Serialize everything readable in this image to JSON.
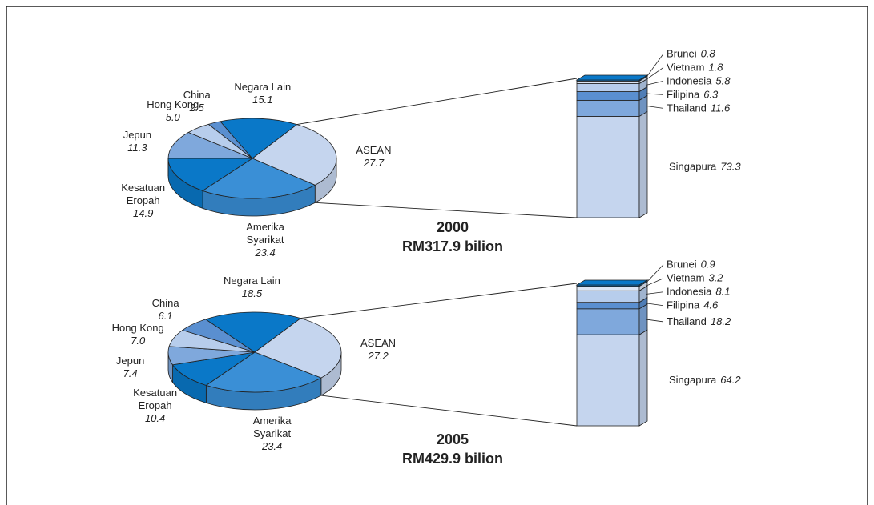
{
  "chart_data": [
    {
      "type": "pie",
      "title": "2000",
      "subtitle": "RM317.9 bilion",
      "categories": [
        "ASEAN",
        "Amerika Syarikat",
        "Kesatuan Eropah",
        "Jepun",
        "Hong Kong",
        "China",
        "Negara Lain"
      ],
      "values": [
        27.7,
        23.4,
        14.9,
        11.3,
        5.0,
        2.5,
        15.1
      ],
      "value_labels": [
        "27.7",
        "23.4",
        "14.9",
        "11.3",
        "5.0",
        "2.5",
        "15.1"
      ],
      "colors": [
        "#c5d5ee",
        "#3a8fd6",
        "#0a78c8",
        "#7fa8dc",
        "#b7cdec",
        "#5a8fd0",
        "#0a78c8"
      ],
      "breakdown": {
        "categories": [
          "Singapura",
          "Thailand",
          "Filipina",
          "Indonesia",
          "Vietnam",
          "Brunei"
        ],
        "values": [
          73.3,
          11.6,
          6.3,
          5.8,
          1.8,
          0.8
        ],
        "colors": [
          "#c5d5ee",
          "#7fa8dc",
          "#5a8fd0",
          "#b7cdec",
          "#dce6f5",
          "#0a78c8"
        ]
      }
    },
    {
      "type": "pie",
      "title": "2005",
      "subtitle": "RM429.9 bilion",
      "categories": [
        "ASEAN",
        "Amerika Syarikat",
        "Kesatuan Eropah",
        "Jepun",
        "Hong Kong",
        "China",
        "Negara Lain"
      ],
      "values": [
        27.2,
        23.4,
        10.4,
        7.4,
        7.0,
        6.1,
        18.5
      ],
      "value_labels": [
        "27.2",
        "23.4",
        "10.4",
        "7.4",
        "7.0",
        "6.1",
        "18.5"
      ],
      "colors": [
        "#c5d5ee",
        "#3a8fd6",
        "#0a78c8",
        "#7fa8dc",
        "#b7cdec",
        "#5a8fd0",
        "#0a78c8"
      ],
      "breakdown": {
        "categories": [
          "Singapura",
          "Thailand",
          "Filipina",
          "Indonesia",
          "Vietnam",
          "Brunei"
        ],
        "values": [
          64.2,
          18.2,
          4.6,
          8.1,
          3.2,
          0.9
        ],
        "colors": [
          "#c5d5ee",
          "#7fa8dc",
          "#5a8fd0",
          "#b7cdec",
          "#dce6f5",
          "#0a78c8"
        ]
      }
    }
  ]
}
